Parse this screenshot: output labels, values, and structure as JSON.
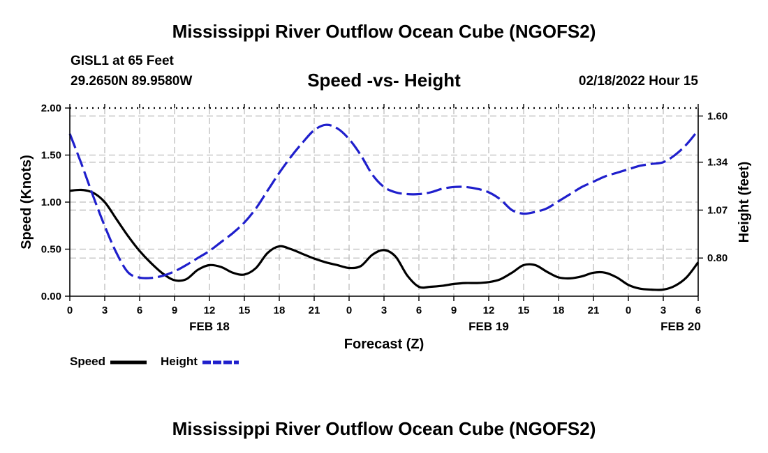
{
  "header": {
    "title": "Mississippi River Outflow Ocean Cube (NGOFS2)",
    "station": "GISL1 at 65 Feet",
    "coords": "29.2650N  89.9580W",
    "subtitle": "Speed -vs- Height",
    "datetime": "02/18/2022 Hour 15",
    "footer_title": "Mississippi River Outflow Ocean Cube (NGOFS2)"
  },
  "chart_data": {
    "type": "line",
    "title": "Speed -vs- Height",
    "xlabel": "Forecast (Z)",
    "ylabel": "Speed (Knots)",
    "y2label": "Height (feet)",
    "x_range": [
      0,
      54
    ],
    "ylim": [
      0,
      2.0
    ],
    "y2lim": [
      0.585,
      1.645
    ],
    "grid": true,
    "x_ticks": [
      0,
      3,
      6,
      9,
      12,
      15,
      18,
      21,
      24,
      27,
      30,
      33,
      36,
      39,
      42,
      45,
      48,
      51,
      54
    ],
    "x_tick_labels": [
      "0",
      "3",
      "6",
      "9",
      "12",
      "15",
      "18",
      "21",
      "0",
      "3",
      "6",
      "9",
      "12",
      "15",
      "18",
      "21",
      "0",
      "3",
      "6"
    ],
    "date_labels": [
      {
        "x": 12,
        "label": "FEB 18"
      },
      {
        "x": 36,
        "label": "FEB 19"
      },
      {
        "x": 52.5,
        "label": "FEB 20"
      }
    ],
    "y_ticks": [
      0.0,
      0.5,
      1.0,
      1.5,
      2.0
    ],
    "y_tick_labels": [
      "0.00",
      "0.50",
      "1.00",
      "1.50",
      "2.00"
    ],
    "y2_ticks": [
      0.8,
      1.07,
      1.34,
      1.6
    ],
    "y2_tick_labels": [
      "0.80",
      "1.07",
      "1.34",
      "1.60"
    ],
    "series": [
      {
        "name": "Speed",
        "axis": "left",
        "color": "#000000",
        "style": "solid",
        "points": [
          [
            0,
            1.12
          ],
          [
            1,
            1.13
          ],
          [
            2,
            1.1
          ],
          [
            3,
            1.0
          ],
          [
            4,
            0.82
          ],
          [
            5,
            0.64
          ],
          [
            6,
            0.48
          ],
          [
            7,
            0.35
          ],
          [
            8,
            0.24
          ],
          [
            9,
            0.17
          ],
          [
            10,
            0.18
          ],
          [
            11,
            0.28
          ],
          [
            12,
            0.33
          ],
          [
            13,
            0.31
          ],
          [
            14,
            0.25
          ],
          [
            15,
            0.23
          ],
          [
            16,
            0.3
          ],
          [
            17,
            0.46
          ],
          [
            18,
            0.53
          ],
          [
            19,
            0.5
          ],
          [
            20,
            0.45
          ],
          [
            21,
            0.4
          ],
          [
            22,
            0.36
          ],
          [
            23,
            0.33
          ],
          [
            24,
            0.3
          ],
          [
            25,
            0.32
          ],
          [
            26,
            0.44
          ],
          [
            27,
            0.49
          ],
          [
            28,
            0.42
          ],
          [
            29,
            0.22
          ],
          [
            30,
            0.1
          ],
          [
            31,
            0.1
          ],
          [
            32,
            0.11
          ],
          [
            33,
            0.13
          ],
          [
            34,
            0.14
          ],
          [
            35,
            0.14
          ],
          [
            36,
            0.15
          ],
          [
            37,
            0.18
          ],
          [
            38,
            0.25
          ],
          [
            39,
            0.33
          ],
          [
            40,
            0.33
          ],
          [
            41,
            0.26
          ],
          [
            42,
            0.2
          ],
          [
            43,
            0.19
          ],
          [
            44,
            0.21
          ],
          [
            45,
            0.25
          ],
          [
            46,
            0.25
          ],
          [
            47,
            0.2
          ],
          [
            48,
            0.12
          ],
          [
            49,
            0.08
          ],
          [
            50,
            0.07
          ],
          [
            51,
            0.07
          ],
          [
            52,
            0.11
          ],
          [
            53,
            0.2
          ],
          [
            54,
            0.36
          ]
        ]
      },
      {
        "name": "Height",
        "axis": "right",
        "color": "#1f1fcc",
        "style": "dashed",
        "points": [
          [
            0,
            1.5
          ],
          [
            1,
            1.33
          ],
          [
            2,
            1.15
          ],
          [
            3,
            0.98
          ],
          [
            4,
            0.83
          ],
          [
            5,
            0.72
          ],
          [
            6,
            0.69
          ],
          [
            7,
            0.688
          ],
          [
            8,
            0.7
          ],
          [
            9,
            0.725
          ],
          [
            10,
            0.76
          ],
          [
            11,
            0.8
          ],
          [
            12,
            0.84
          ],
          [
            13,
            0.89
          ],
          [
            14,
            0.94
          ],
          [
            15,
            1.0
          ],
          [
            16,
            1.08
          ],
          [
            17,
            1.18
          ],
          [
            18,
            1.28
          ],
          [
            19,
            1.37
          ],
          [
            20,
            1.45
          ],
          [
            21,
            1.52
          ],
          [
            22,
            1.55
          ],
          [
            23,
            1.53
          ],
          [
            24,
            1.47
          ],
          [
            25,
            1.38
          ],
          [
            26,
            1.27
          ],
          [
            27,
            1.2
          ],
          [
            28,
            1.17
          ],
          [
            29,
            1.16
          ],
          [
            30,
            1.16
          ],
          [
            31,
            1.17
          ],
          [
            32,
            1.19
          ],
          [
            33,
            1.2
          ],
          [
            34,
            1.2
          ],
          [
            35,
            1.19
          ],
          [
            36,
            1.17
          ],
          [
            37,
            1.13
          ],
          [
            38,
            1.07
          ],
          [
            39,
            1.05
          ],
          [
            40,
            1.06
          ],
          [
            41,
            1.08
          ],
          [
            42,
            1.12
          ],
          [
            43,
            1.16
          ],
          [
            44,
            1.2
          ],
          [
            45,
            1.23
          ],
          [
            46,
            1.26
          ],
          [
            47,
            1.28
          ],
          [
            48,
            1.3
          ],
          [
            49,
            1.32
          ],
          [
            50,
            1.33
          ],
          [
            51,
            1.34
          ],
          [
            52,
            1.38
          ],
          [
            53,
            1.44
          ],
          [
            54,
            1.52
          ]
        ]
      }
    ],
    "legend": [
      {
        "label": "Speed",
        "color": "#000000",
        "style": "solid"
      },
      {
        "label": "Height",
        "color": "#1f1fcc",
        "style": "dashed"
      }
    ]
  }
}
